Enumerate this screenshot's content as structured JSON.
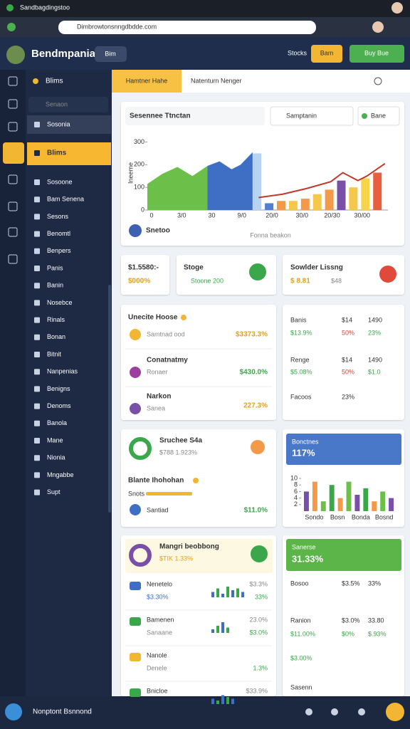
{
  "browser": {
    "tab": "Sandbagdingstoo",
    "url": "Dimbrowtonsnngdbdde.com"
  },
  "header": {
    "brand": "Bendmpania",
    "menu": "Bim",
    "actions": [
      "Stocks",
      "Bam",
      "Buy Bue"
    ]
  },
  "sidebar": {
    "section": "Blims",
    "search": "Senaon",
    "items": [
      "Sosonia",
      "Blims",
      "Sosoone",
      "Bam Senena",
      "Sesons",
      "Benomtl",
      "Benpers",
      "Panis",
      "Banin",
      "Nosebce",
      "Rinals",
      "Bonan",
      "Bitnit",
      "Nanpenias",
      "Benigns",
      "Denoms",
      "Banola",
      "Mane",
      "Nionia",
      "Mngabbe",
      "Supt"
    ]
  },
  "tabs": [
    "Hamtner Hahe",
    "Natenturn Nenger"
  ],
  "chart_card": {
    "dropdown": "Sesennee Ttnctan",
    "search": "Samptanin",
    "filter": "Bane",
    "legend": "Snetoo",
    "caption": "Fonna beakon",
    "chart": {
      "ylabel": "Ineeme",
      "categories": [
        "0",
        "3/0",
        "30",
        "9/0",
        "20/0",
        "30/0",
        "20/30",
        "30/00"
      ],
      "xlim": [
        0,
        8
      ],
      "ylim": [
        0,
        330
      ],
      "yticks": [
        0,
        100,
        200,
        300
      ],
      "areas": [
        {
          "color": "#6cc04a",
          "x": [
            0,
            0.5,
            1,
            1.5,
            2
          ],
          "values": [
            115,
            160,
            190,
            150,
            195
          ]
        },
        {
          "color": "#3f6fc4",
          "x": [
            2,
            2.4,
            2.8,
            3.1,
            3.5
          ],
          "values": [
            195,
            215,
            180,
            200,
            255
          ]
        }
      ],
      "bars": {
        "x": [
          3.65,
          4.05,
          4.45,
          4.85,
          5.25,
          5.65,
          6.05,
          6.45,
          6.85,
          7.25,
          7.65
        ],
        "values": [
          250,
          30,
          40,
          40,
          50,
          70,
          90,
          130,
          100,
          140,
          165
        ],
        "colors": [
          "#b7d3f2",
          "#4f7fd0",
          "#f29a4a",
          "#f6c84a",
          "#f29a4a",
          "#f6c84a",
          "#f29a4a",
          "#7a4fa8",
          "#f6c84a",
          "#f6d54a",
          "#e4603e"
        ]
      },
      "line": {
        "color": "#c0392b",
        "x": [
          3.7,
          4.5,
          5.3,
          6.1,
          6.5,
          7.0,
          7.3,
          7.9
        ],
        "values": [
          55,
          70,
          95,
          125,
          165,
          130,
          150,
          205
        ]
      }
    }
  },
  "stats": [
    {
      "title": "$1.5580:-",
      "value": "$000%"
    },
    {
      "title": "Stoge",
      "value": "Stoone 200"
    },
    {
      "title": "Sowlder Lissng",
      "value": "$ 8.81",
      "extra": "$48"
    }
  ],
  "list_card": {
    "title": "Unecite Hoose",
    "items": [
      {
        "sub": "Samtnad ood",
        "value": "$3373.3%"
      },
      {
        "title": "Conatnatmy",
        "sub": "Ronaer",
        "value": "$430.0%"
      },
      {
        "title": "Narkon",
        "sub": "Sanea",
        "value": "227.3%"
      }
    ]
  },
  "table_card": {
    "rows": [
      [
        "Banis",
        "$14",
        "1490"
      ],
      [
        "$13.9%",
        "50%",
        "23%"
      ],
      [
        "Renge",
        "$14",
        "1490"
      ],
      [
        "$5.08%",
        "50%",
        "$1.0"
      ],
      [
        "Facoos",
        "23%"
      ]
    ]
  },
  "summary_card": {
    "title": "Sruchee S4a",
    "sub": "$788 1.923%",
    "heading": "Blante Ihohohan",
    "tag": "Snots",
    "item": "Santiad",
    "value": "$11.0%"
  },
  "blue_card": {
    "title": "Bonctnes",
    "value": "117%",
    "chart": {
      "categories": [
        "Sondo",
        "Bosn",
        "Bonda",
        "Bosnd"
      ],
      "ylim": [
        0,
        10
      ],
      "yticks": [
        2,
        4,
        6,
        8,
        10
      ],
      "values": [
        6,
        9,
        3,
        8,
        4,
        9,
        5,
        7,
        3,
        6,
        4
      ],
      "colors": [
        "#7a4fa8",
        "#f29a4a",
        "#6cc04a",
        "#3aa84a",
        "#f29a4a",
        "#6cc04a",
        "#7a4fa8",
        "#3aa84a",
        "#f29a4a",
        "#6cc04a",
        "#7a4fa8"
      ]
    }
  },
  "report_card": {
    "title": "Mangri beobbong",
    "sub": "$TIK 1.33%",
    "rows": [
      {
        "name": "Nenetelo",
        "sub": "$3.30%",
        "a": "$3.3%",
        "b": "33%",
        "spark": [
          3,
          5,
          2,
          6,
          4,
          5,
          3
        ]
      },
      {
        "name": "Bamenen",
        "sub": "Sanaane",
        "a": "23.0%",
        "b": "$3.0%",
        "spark": [
          2,
          4,
          6,
          3
        ]
      },
      {
        "name": "Nanole",
        "sub": "Denele",
        "b": "1.3%"
      },
      {
        "name": "Bnicloe",
        "a": "$33.9%",
        "spark": [
          3,
          2,
          5,
          4,
          3
        ]
      }
    ]
  },
  "green_card": {
    "title": "Sanerse",
    "value": "31.33%",
    "rows": [
      [
        "Bosoo",
        "$3.5%",
        "33%"
      ],
      [
        "Ranion",
        "$3.0%",
        "33.80"
      ],
      [
        "$11.00%",
        "$0%",
        "$.93%"
      ],
      [
        "$3.00%"
      ],
      [
        "Sasenn"
      ]
    ]
  },
  "footer": {
    "text": "Nonptont Bsnnond"
  }
}
